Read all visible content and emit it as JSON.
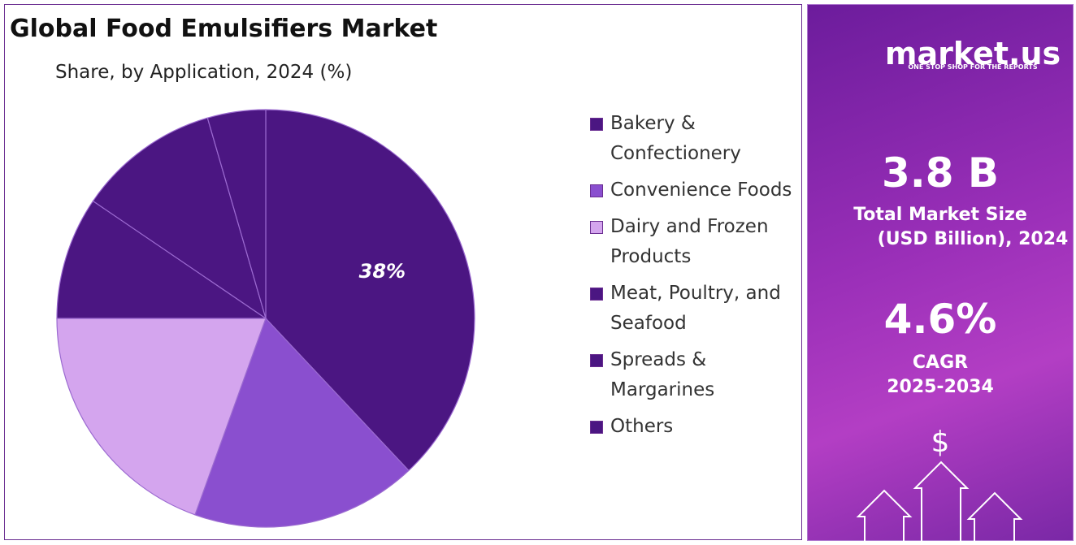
{
  "chart_data": {
    "type": "pie",
    "title": "Global Food Emulsifiers Market",
    "subtitle": "Share, by Application, 2024 (%)",
    "categories": [
      "Bakery & Confectionery",
      "Convenience Foods",
      "Dairy and Frozen Products",
      "Meat, Poultry, and Seafood",
      "Spreads & Margarines",
      "Others"
    ],
    "values": [
      38,
      17.5,
      19.5,
      9.5,
      11,
      4.5
    ],
    "value_labels": [
      "38%",
      null,
      null,
      null,
      null,
      null
    ],
    "colors": [
      "#4b1682",
      "#8a4fcf",
      "#d4a5ee",
      "#4b1682",
      "#4b1682",
      "#4b1682"
    ]
  },
  "side_panel": {
    "brand": "market.us",
    "tagline": "ONE STOP SHOP FOR THE REPORTS",
    "market_size": "3.8 B",
    "market_size_label_1": "Total Market Size",
    "market_size_label_2": "(USD Billion), 2024",
    "cagr": "4.6%",
    "cagr_label_1": "CAGR",
    "cagr_label_2": "2025-2034",
    "currency_icon": "$"
  }
}
